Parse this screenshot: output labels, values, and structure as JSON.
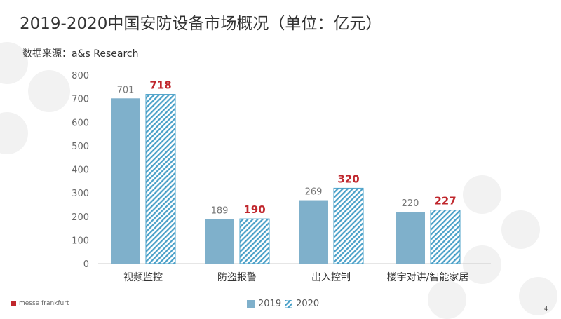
{
  "title": "2019-2020中国安防设备市场概况（单位：亿元）",
  "source": "数据来源：a&s Research",
  "logo_text": "messe frankfurt",
  "page_number": "4",
  "colors": {
    "s2019": "#7fb0cb",
    "s2020": "#4aa0c8",
    "highlight": "#c0272d"
  },
  "chart_data": {
    "type": "bar",
    "categories": [
      "视频监控",
      "防盗报警",
      "出入控制",
      "楼宇对讲/智能家居"
    ],
    "series": [
      {
        "name": "2019",
        "values": [
          701,
          189,
          269,
          220
        ]
      },
      {
        "name": "2020",
        "values": [
          718,
          190,
          320,
          227
        ]
      }
    ],
    "ylim": [
      0,
      800
    ],
    "yticks": [
      0,
      100,
      200,
      300,
      400,
      500,
      600,
      700,
      800
    ],
    "grid": false,
    "legend": "bottom"
  }
}
